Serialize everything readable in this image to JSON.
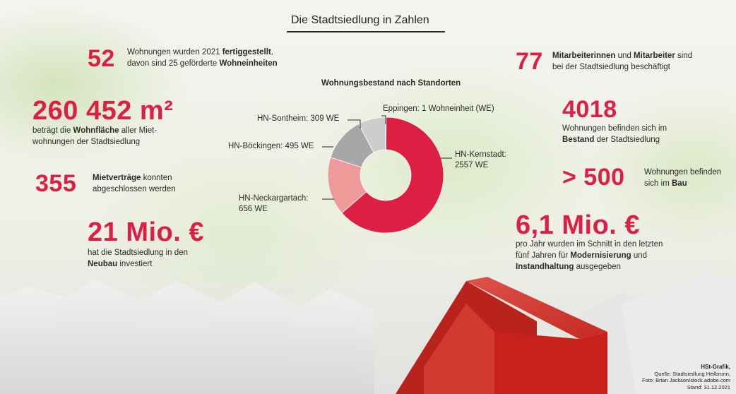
{
  "title": "Die Stadtsiedlung in Zahlen",
  "stats": {
    "s1": {
      "value": "52",
      "l1a": "Wohnungen wurden 2021 ",
      "l1b": "fertiggestellt",
      "l1c": ",",
      "l2a": "davon sind 25 geförderte ",
      "l2b": "Wohneinheiten"
    },
    "s2": {
      "value": "260 452 m²",
      "l1a": "beträgt die ",
      "l1b": "Wohnfläche",
      "l1c": " aller Miet-",
      "l2": "wohnungen der Stadtsiedlung"
    },
    "s3": {
      "value": "355",
      "l1a": "Mietverträge",
      "l1b": " konnten",
      "l2": "abgeschlossen werden"
    },
    "s4": {
      "value": "21 Mio. €",
      "l1": "hat die Stadtsiedlung in den",
      "l2a": "Neubau",
      "l2b": " investiert"
    },
    "s5": {
      "value": "77",
      "l1a": "Mitarbeiterinnen",
      "l1b": " und ",
      "l1c": "Mitarbeiter",
      "l1d": " sind",
      "l2": "bei der Stadtsiedlung beschäftigt"
    },
    "s6": {
      "value": "4018",
      "l1": "Wohnungen befinden sich im",
      "l2a": "Bestand",
      "l2b": " der Stadtsiedlung"
    },
    "s7": {
      "value": "> 500",
      "l1": "Wohnungen befinden",
      "l2a": "sich im ",
      "l2b": "Bau"
    },
    "s8": {
      "value": "6,1 Mio. €",
      "l1": "pro Jahr wurden im Schnitt in den letzten",
      "l2a": "fünf Jahren für ",
      "l2b": "Modernisierung",
      "l2c": " und",
      "l3a": "Instandhaltung",
      "l3b": " ausgegeben"
    }
  },
  "chart_data": {
    "type": "pie",
    "title": "Wohnungsbestand nach Standorten",
    "donut": true,
    "slices": [
      {
        "name": "HN-Kernstadt",
        "value": 2557,
        "label_line1": "HN-Kernstadt:",
        "label_line2": "2557 WE",
        "color": "#dc1f43"
      },
      {
        "name": "HN-Neckargartach",
        "value": 656,
        "label_line1": "HN-Neckargartach:",
        "label_line2": "656 WE",
        "color": "#ee9a98"
      },
      {
        "name": "HN-Böckingen",
        "value": 495,
        "label_line1": "HN-Böckingen: 495 WE",
        "label_line2": "",
        "color": "#a7a7a7"
      },
      {
        "name": "HN-Sontheim",
        "value": 309,
        "label_line1": "HN-Sontheim: 309 WE",
        "label_line2": "",
        "color": "#cdcdcd"
      },
      {
        "name": "Eppingen",
        "value": 1,
        "label_line1": "Eppingen: 1 Wohneinheit (WE)",
        "label_line2": "",
        "color": "#ffffff"
      }
    ]
  },
  "credits": {
    "line1": "HSt-Grafik,",
    "line2": "Quelle: Stadtsiedlung Heilbronn,",
    "line3": "Foto: Brian Jackson/stock.adobe.com",
    "line4": "Stand: 31.12.2021"
  }
}
